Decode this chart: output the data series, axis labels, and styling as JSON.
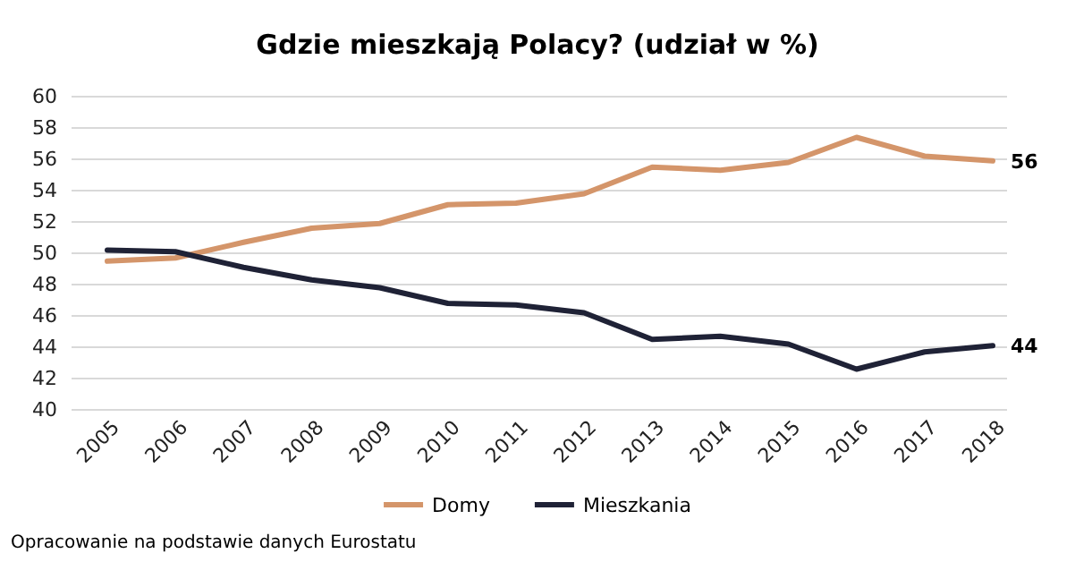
{
  "chart_data": {
    "type": "line",
    "title": "Gdzie mieszkają Polacy? (udział w %)",
    "categories": [
      "2005",
      "2006",
      "2007",
      "2008",
      "2009",
      "2010",
      "2011",
      "2012",
      "2013",
      "2014",
      "2015",
      "2016",
      "2017",
      "2018"
    ],
    "series": [
      {
        "name": "Domy",
        "color": "#d4956a",
        "values": [
          49.5,
          49.7,
          50.7,
          51.6,
          51.9,
          53.1,
          53.2,
          53.8,
          55.5,
          55.3,
          55.8,
          57.4,
          56.2,
          55.9
        ],
        "value_labels": [
          null,
          null,
          null,
          null,
          null,
          null,
          null,
          null,
          null,
          null,
          null,
          null,
          null,
          "56"
        ]
      },
      {
        "name": "Mieszkania",
        "color": "#1f2236",
        "values": [
          50.2,
          50.1,
          49.1,
          48.3,
          47.8,
          46.8,
          46.7,
          46.2,
          44.5,
          44.7,
          44.2,
          42.6,
          43.7,
          44.1
        ],
        "value_labels": [
          null,
          null,
          null,
          null,
          null,
          null,
          null,
          null,
          null,
          null,
          null,
          null,
          null,
          "44"
        ]
      }
    ],
    "ylim": [
      40,
      60
    ],
    "yticks": [
      40,
      42,
      44,
      46,
      48,
      50,
      52,
      54,
      56,
      58,
      60
    ],
    "grid": "y",
    "legend": "bottom",
    "annotations": [
      "Opracowanie na podstawie danych Eurostatu"
    ]
  }
}
